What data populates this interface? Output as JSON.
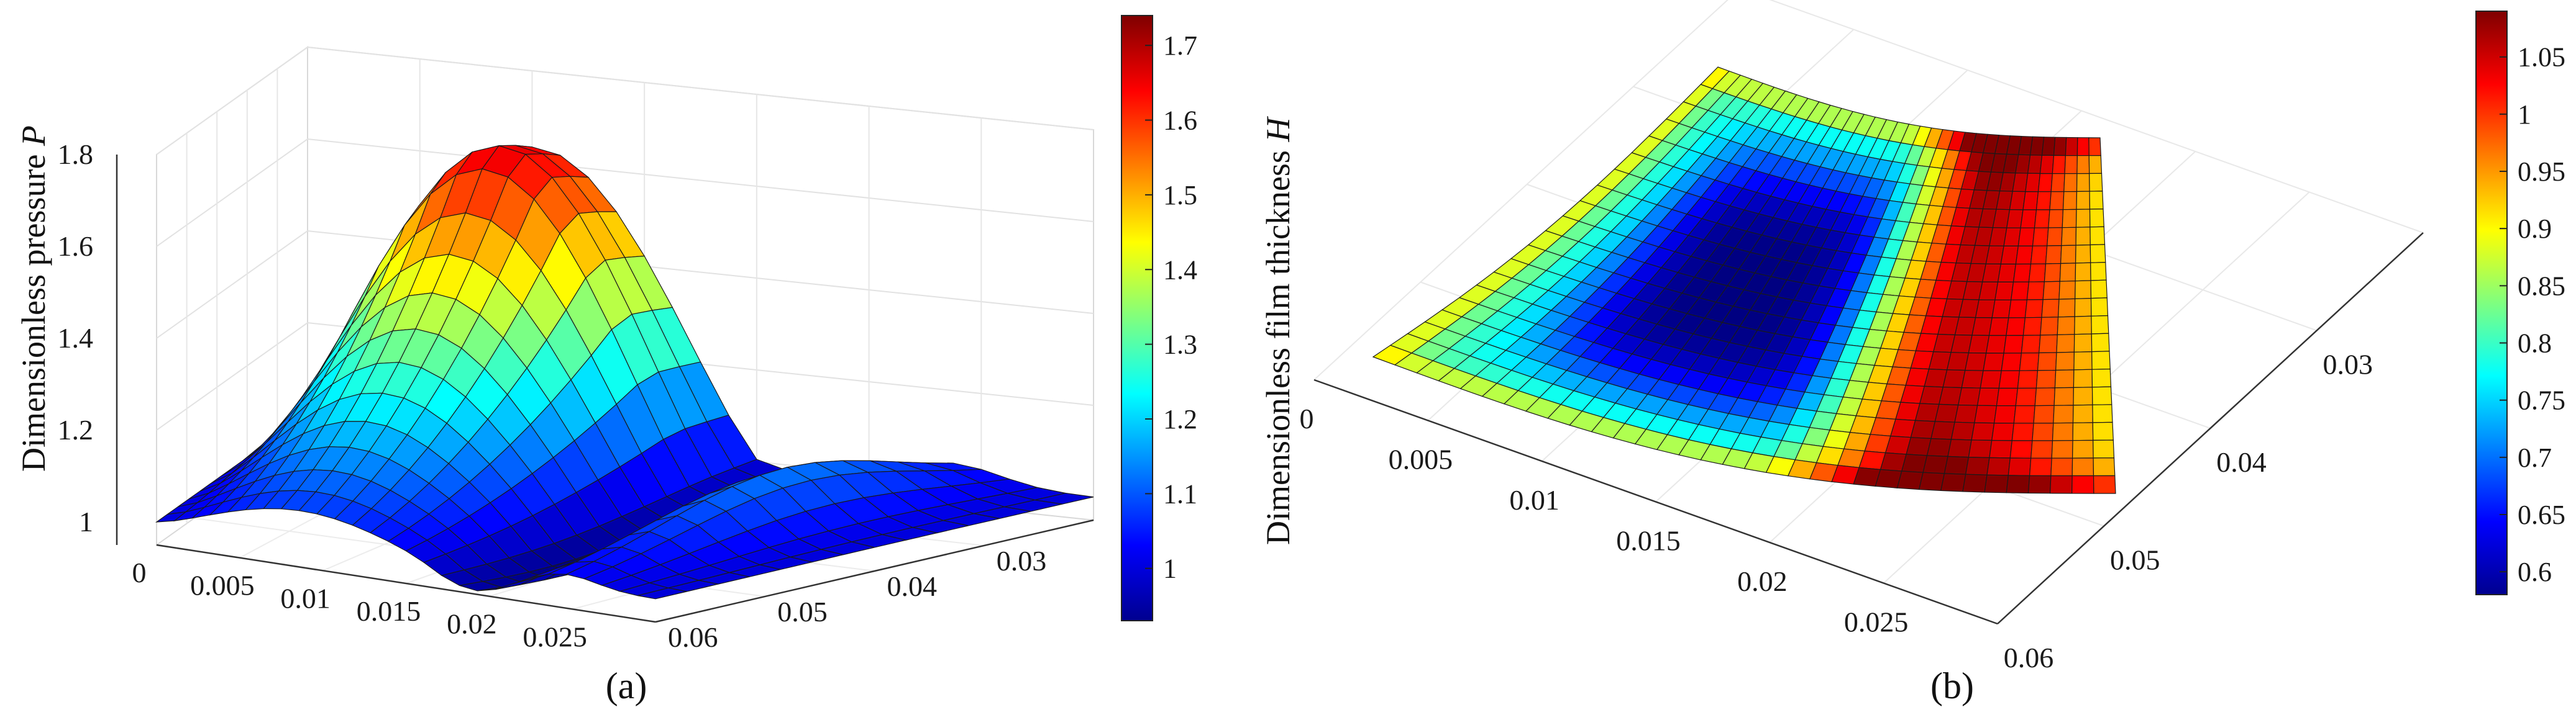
{
  "chart_data": [
    {
      "type": "surface3d",
      "panel": "(a)",
      "zlabel": "Dimensionless pressure",
      "zlabel_symbol": "P",
      "x_ticks": [
        "0",
        "0.005",
        "0.01",
        "0.015",
        "0.02",
        "0.025"
      ],
      "y_ticks": [
        "0.06",
        "0.05",
        "0.04",
        "0.03"
      ],
      "z_ticks": [
        "1",
        "1.2",
        "1.4",
        "1.6",
        "1.8"
      ],
      "zlim": [
        0.95,
        1.8
      ],
      "colorbar": {
        "min": 0.93,
        "max": 1.74,
        "ticks": [
          "1",
          "1.1",
          "1.2",
          "1.3",
          "1.4",
          "1.5",
          "1.6",
          "1.7"
        ]
      },
      "colormap": "jet",
      "grid": true,
      "description_values": {
        "peak_pressure": 1.74,
        "min_pressure": 0.93
      }
    },
    {
      "type": "surface3d",
      "panel": "(b)",
      "zlabel": "Dimensionless film thickness",
      "zlabel_symbol": "H",
      "x_ticks": [
        "0",
        "0.005",
        "0.01",
        "0.015",
        "0.02",
        "0.025"
      ],
      "y_ticks": [
        "0.06",
        "0.05",
        "0.04",
        "0.03"
      ],
      "colorbar": {
        "min": 0.58,
        "max": 1.09,
        "ticks": [
          "0.6",
          "0.65",
          "0.7",
          "0.75",
          "0.8",
          "0.85",
          "0.9",
          "0.95",
          "1",
          "1.05"
        ]
      },
      "colormap": "jet",
      "grid": true,
      "description_values": {
        "max_film": 1.09,
        "min_film": 0.58
      }
    }
  ]
}
